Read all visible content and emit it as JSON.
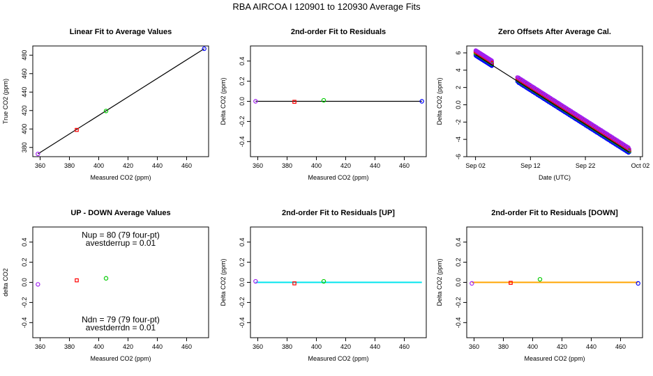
{
  "suptitle": "RBA   AIRCOA I   120901 to 120930   Average Fits",
  "chart_data": [
    {
      "type": "scatter",
      "title": "Linear Fit to Average Values",
      "xlabel": "Measured CO2 (ppm)",
      "ylabel": "True CO2 (ppm)",
      "xlim": [
        355,
        475
      ],
      "ylim": [
        370,
        490
      ],
      "xticks": [
        360,
        380,
        400,
        420,
        440,
        460
      ],
      "yticks": [
        380,
        400,
        420,
        440,
        460,
        480
      ],
      "points": [
        {
          "x": 358.5,
          "y": 373.0,
          "color": "#a020f0"
        },
        {
          "x": 385.0,
          "y": 399.0,
          "color": "#ff0000"
        },
        {
          "x": 405.0,
          "y": 419.5,
          "color": "#00cc00"
        },
        {
          "x": 472.0,
          "y": 487.0,
          "color": "#0000ff"
        }
      ],
      "fit_line": {
        "x": [
          358.5,
          472.0
        ],
        "y": [
          373.0,
          487.0
        ],
        "color": "#000000"
      },
      "annotations": []
    },
    {
      "type": "scatter",
      "title": "2nd-order Fit to Residuals",
      "xlabel": "Measured CO2 (ppm)",
      "ylabel": "Delta CO2 (ppm)",
      "xlim": [
        355,
        475
      ],
      "ylim": [
        -0.55,
        0.55
      ],
      "xticks": [
        360,
        380,
        400,
        420,
        440,
        460
      ],
      "yticks": [
        -0.4,
        -0.2,
        0.0,
        0.2,
        0.4
      ],
      "points": [
        {
          "x": 358.5,
          "y": 0.0,
          "color": "#a020f0"
        },
        {
          "x": 385.0,
          "y": -0.005,
          "color": "#ff0000"
        },
        {
          "x": 405.0,
          "y": 0.01,
          "color": "#00cc00"
        },
        {
          "x": 472.0,
          "y": 0.0,
          "color": "#0000ff"
        }
      ],
      "fit_line": {
        "x": [
          358.5,
          472.0
        ],
        "y": [
          0.0,
          0.0
        ],
        "color": "#000000"
      },
      "annotations": []
    },
    {
      "type": "scatter",
      "title": "Zero Offsets After Average Cal.",
      "xlabel": "Date (UTC)",
      "ylabel": "Delta CO2 (ppm)",
      "xlim": [
        0,
        32
      ],
      "ylim": [
        -6,
        6.8
      ],
      "xticks": [
        1.6,
        11.6,
        21.6,
        31.6
      ],
      "xticklabels": [
        "Sep 02",
        "Sep 12",
        "Sep 22",
        "Oct 02"
      ],
      "yticks": [
        -6,
        -4,
        -2,
        0,
        2,
        4,
        6
      ],
      "trend": {
        "start": [
          1.6,
          6.0
        ],
        "end": [
          29.6,
          -5.3
        ],
        "colors": [
          "#0000ff",
          "#00cc00",
          "#ff0000",
          "#a020f0"
        ]
      },
      "segments": [
        [
          1.6,
          4.6
        ],
        [
          9.2,
          29.6
        ]
      ],
      "fit_line": {
        "x": [
          1.6,
          29.6
        ],
        "y": [
          5.8,
          -5.5
        ],
        "color": "#000000"
      },
      "annotations": []
    },
    {
      "type": "scatter",
      "title": "UP - DOWN Average Values",
      "xlabel": "Measured CO2 (ppm)",
      "ylabel": "delta CO2",
      "xlim": [
        355,
        475
      ],
      "ylim": [
        -0.55,
        0.55
      ],
      "xticks": [
        360,
        380,
        400,
        420,
        440,
        460
      ],
      "yticks": [
        -0.4,
        -0.2,
        0.0,
        0.2,
        0.4
      ],
      "points": [
        {
          "x": 358.5,
          "y": -0.02,
          "color": "#a020f0"
        },
        {
          "x": 385.0,
          "y": 0.02,
          "color": "#ff0000"
        },
        {
          "x": 405.0,
          "y": 0.04,
          "color": "#00cc00"
        }
      ],
      "annotations": [
        {
          "text": "Nup = 80 (79 four-pt)",
          "x": 415,
          "y": 0.47
        },
        {
          "text": "avestderrup =  0.01",
          "x": 415,
          "y": 0.39
        },
        {
          "text": "Ndn = 79 (79 four-pt)",
          "x": 415,
          "y": -0.37
        },
        {
          "text": "avestderrdn =  0.01",
          "x": 415,
          "y": -0.45
        }
      ]
    },
    {
      "type": "scatter",
      "title": "2nd-order Fit to Residuals [UP]",
      "xlabel": "Measured CO2 (ppm)",
      "ylabel": "Delta CO2 (ppm)",
      "xlim": [
        355,
        475
      ],
      "ylim": [
        -0.55,
        0.55
      ],
      "xticks": [
        360,
        380,
        400,
        420,
        440,
        460
      ],
      "yticks": [
        -0.4,
        -0.2,
        0.0,
        0.2,
        0.4
      ],
      "points": [
        {
          "x": 358.5,
          "y": 0.01,
          "color": "#a020f0"
        },
        {
          "x": 385.0,
          "y": -0.01,
          "color": "#ff0000"
        },
        {
          "x": 405.0,
          "y": 0.01,
          "color": "#00cc00"
        }
      ],
      "fit_line": {
        "x": [
          358.5,
          472.0
        ],
        "y": [
          0.0,
          0.0
        ],
        "color": "#00e5ee"
      },
      "annotations": []
    },
    {
      "type": "scatter",
      "title": "2nd-order Fit to Residuals [DOWN]",
      "xlabel": "Measured CO2 (ppm)",
      "ylabel": "Delta CO2 (ppm)",
      "xlim": [
        355,
        475
      ],
      "ylim": [
        -0.55,
        0.55
      ],
      "xticks": [
        360,
        380,
        400,
        420,
        440,
        460
      ],
      "yticks": [
        -0.4,
        -0.2,
        0.0,
        0.2,
        0.4
      ],
      "points": [
        {
          "x": 358.5,
          "y": -0.01,
          "color": "#a020f0"
        },
        {
          "x": 385.0,
          "y": -0.005,
          "color": "#ff0000"
        },
        {
          "x": 405.0,
          "y": 0.03,
          "color": "#00cc00"
        },
        {
          "x": 472.0,
          "y": -0.01,
          "color": "#0000ff"
        }
      ],
      "fit_line": {
        "x": [
          358.5,
          472.0
        ],
        "y": [
          0.0,
          0.0
        ],
        "color": "#ffa500"
      },
      "annotations": []
    }
  ]
}
